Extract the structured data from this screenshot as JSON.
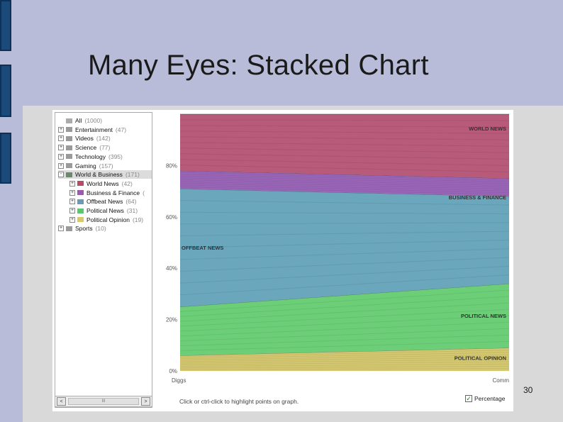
{
  "slide": {
    "title": "Many Eyes: Stacked Chart",
    "page_number": "30"
  },
  "tree": {
    "items": [
      {
        "label": "All",
        "count": "(1000)",
        "color": "#aaaaaa",
        "level": 0,
        "expander": ""
      },
      {
        "label": "Entertainment",
        "count": "(47)",
        "color": "#9a9a9a",
        "level": 0,
        "expander": "+"
      },
      {
        "label": "Videos",
        "count": "(142)",
        "color": "#9a9a9a",
        "level": 0,
        "expander": "+"
      },
      {
        "label": "Science",
        "count": "(77)",
        "color": "#9a9a9a",
        "level": 0,
        "expander": "+"
      },
      {
        "label": "Technology",
        "count": "(395)",
        "color": "#9a9a9a",
        "level": 0,
        "expander": "+"
      },
      {
        "label": "Gaming",
        "count": "(157)",
        "color": "#9a9a9a",
        "level": 0,
        "expander": "+"
      },
      {
        "label": "World & Business",
        "count": "(171)",
        "color": "#6a8a6a",
        "level": 0,
        "expander": "-",
        "selected": true
      },
      {
        "label": "World News",
        "count": "(42)",
        "color": "#b84a6a",
        "level": 1,
        "expander": "+"
      },
      {
        "label": "Business & Finance",
        "count": "(",
        "color": "#9a5ab0",
        "level": 1,
        "expander": "+"
      },
      {
        "label": "Offbeat News",
        "count": "(64)",
        "color": "#6a9ab8",
        "level": 1,
        "expander": "+"
      },
      {
        "label": "Political News",
        "count": "(31)",
        "color": "#5ac86a",
        "level": 1,
        "expander": "+"
      },
      {
        "label": "Political Opinion",
        "count": "(19)",
        "color": "#d8c86a",
        "level": 1,
        "expander": "+"
      },
      {
        "label": "Sports",
        "count": "(10)",
        "color": "#9a9a9a",
        "level": 0,
        "expander": "+"
      }
    ],
    "scroll_thumb_label": "III",
    "scroll_left_label": "<",
    "scroll_right_label": ">"
  },
  "footer": {
    "hint": "Click or ctrl-click to highlight points on graph.",
    "percentage_label": "Percentage",
    "percentage_checked": true
  },
  "chart_data": {
    "type": "area",
    "stacked": true,
    "x": [
      "Diggs",
      "Comm"
    ],
    "ylim": [
      0,
      100
    ],
    "y_ticks": [
      "0%",
      "20%",
      "40%",
      "60%",
      "80%"
    ],
    "y_tick_values": [
      0,
      20,
      40,
      60,
      80
    ],
    "series": [
      {
        "name": "POLITICAL OPINION",
        "values": [
          6,
          9
        ],
        "color": "#d4c870",
        "label_side": "right"
      },
      {
        "name": "POLITICAL NEWS",
        "values": [
          19,
          25
        ],
        "color": "#6ccf78",
        "label_side": "right"
      },
      {
        "name": "OFFBEAT NEWS",
        "values": [
          46,
          34
        ],
        "color": "#6aa6bc",
        "label_side": "left"
      },
      {
        "name": "BUSINESS & FINANCE",
        "values": [
          7,
          7
        ],
        "color": "#9a66b8",
        "label_side": "right"
      },
      {
        "name": "WORLD NEWS",
        "values": [
          22,
          25
        ],
        "color": "#b85a7a",
        "label_side": "right"
      }
    ]
  }
}
